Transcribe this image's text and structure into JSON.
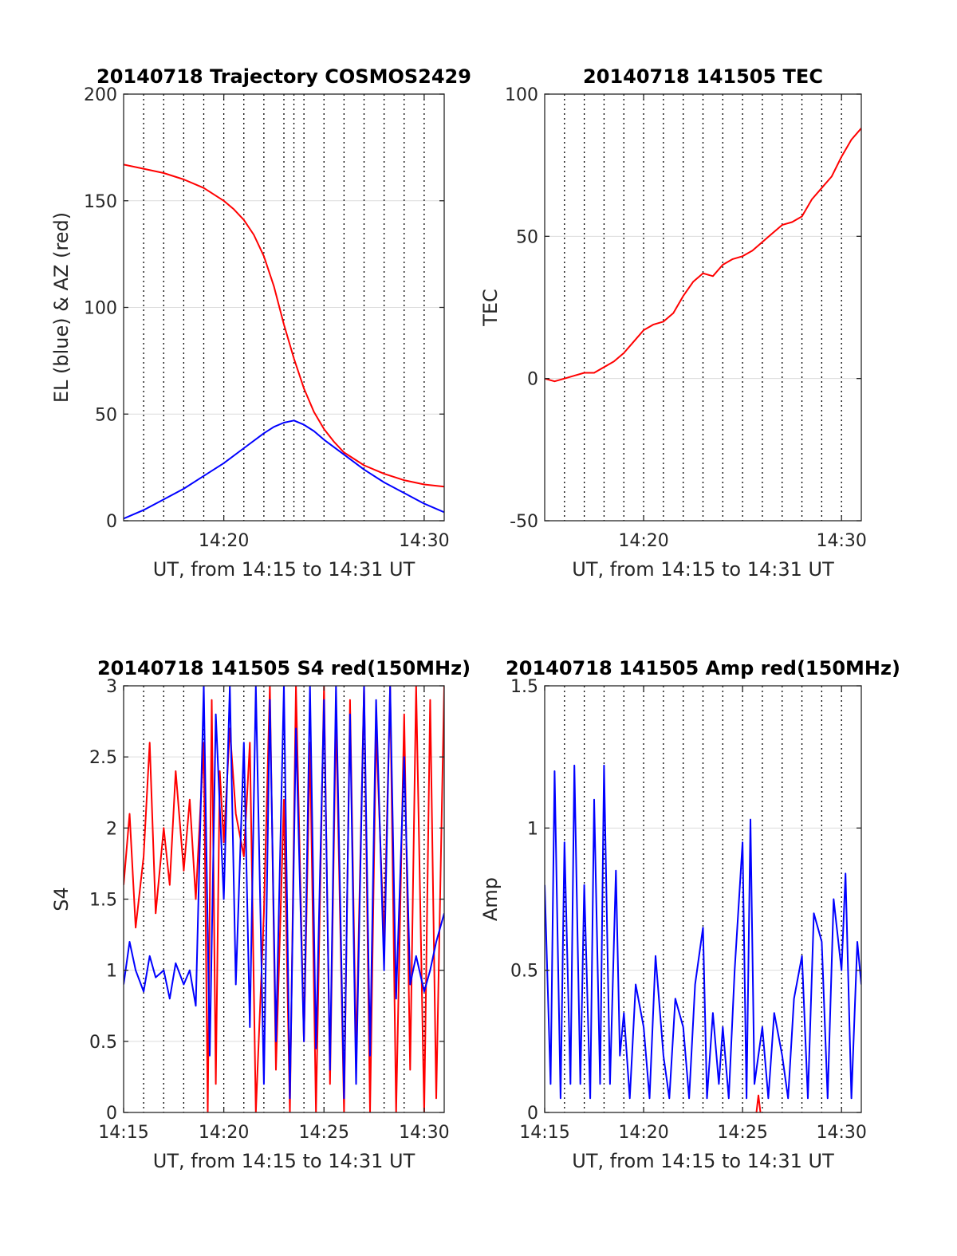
{
  "chart_data": [
    {
      "type": "line",
      "title": "20140718 Trajectory COSMOS2429",
      "xlabel": "UT, from 14:15 to 14:31 UT",
      "ylabel": "EL (blue) & AZ (red)",
      "xlim": [
        15,
        31
      ],
      "ylim": [
        0,
        200
      ],
      "xticks": [
        20,
        30
      ],
      "xticklabels": [
        "14:20",
        "14:30"
      ],
      "yticks": [
        0,
        50,
        100,
        150,
        200
      ],
      "yticklabels": [
        "0",
        "50",
        "100",
        "150",
        "200"
      ],
      "x_unit": "minutes after 14:00 UT",
      "vlines": [
        16,
        17,
        18,
        19,
        20,
        21,
        22,
        23,
        23.5,
        24,
        25,
        26,
        27,
        28,
        29,
        30
      ],
      "grid": "horizontal",
      "series": [
        {
          "color": "#ff0000",
          "x": [
            15,
            16,
            17,
            18,
            19,
            20,
            20.5,
            21,
            21.5,
            22,
            22.5,
            23,
            23.5,
            24,
            24.5,
            25,
            25.5,
            26,
            27,
            28,
            29,
            30,
            31
          ],
          "y": [
            167,
            165,
            163,
            160,
            156,
            150,
            146,
            141,
            134,
            124,
            110,
            92,
            76,
            62,
            51,
            43,
            37,
            32,
            26,
            22,
            19,
            17,
            16
          ]
        },
        {
          "color": "#0000ff",
          "x": [
            15,
            16,
            17,
            18,
            19,
            20,
            21,
            22,
            22.5,
            23,
            23.5,
            24,
            24.5,
            25,
            26,
            27,
            28,
            29,
            30,
            31
          ],
          "y": [
            1,
            5,
            10,
            15,
            21,
            27,
            34,
            41,
            44,
            46,
            47,
            45,
            42,
            38,
            31,
            24,
            18,
            13,
            8,
            4
          ]
        }
      ]
    },
    {
      "type": "line",
      "title": "20140718 141505 TEC",
      "xlabel": "UT, from 14:15 to 14:31 UT",
      "ylabel": "TEC",
      "xlim": [
        15,
        31
      ],
      "ylim": [
        -50,
        100
      ],
      "xticks": [
        20,
        30
      ],
      "xticklabels": [
        "14:20",
        "14:30"
      ],
      "yticks": [
        -50,
        0,
        50,
        100
      ],
      "yticklabels": [
        "-50",
        "0",
        "50",
        "100"
      ],
      "x_unit": "minutes after 14:00 UT",
      "vlines": [
        16,
        17,
        18,
        19,
        20,
        21,
        22,
        23,
        24,
        25,
        26,
        27,
        28,
        29,
        30
      ],
      "grid": "horizontal",
      "series": [
        {
          "color": "#ff0000",
          "x": [
            15,
            15.5,
            16,
            16.5,
            17,
            17.5,
            18,
            18.5,
            19,
            19.5,
            20,
            20.5,
            21,
            21.5,
            22,
            22.5,
            23,
            23.5,
            24,
            24.5,
            25,
            25.5,
            26,
            26.5,
            27,
            27.5,
            28,
            28.5,
            29,
            29.5,
            30,
            30.5,
            31
          ],
          "y": [
            0,
            -1,
            0,
            1,
            2,
            2,
            4,
            6,
            9,
            13,
            17,
            19,
            20,
            23,
            29,
            34,
            37,
            36,
            40,
            42,
            43,
            45,
            48,
            51,
            54,
            55,
            57,
            63,
            67,
            71,
            78,
            84,
            88
          ]
        }
      ]
    },
    {
      "type": "line",
      "title": "20140718 141505 S4 red(150MHz)",
      "xlabel": "UT, from 14:15 to 14:31 UT",
      "ylabel": "S4",
      "xlim": [
        15,
        31
      ],
      "ylim": [
        0,
        3
      ],
      "xticks": [
        15,
        20,
        25,
        30
      ],
      "xticklabels": [
        "14:15",
        "14:20",
        "14:25",
        "14:30"
      ],
      "yticks": [
        0,
        0.5,
        1,
        1.5,
        2,
        2.5,
        3
      ],
      "yticklabels": [
        "0",
        "0.5",
        "1",
        "1.5",
        "2",
        "2.5",
        "3"
      ],
      "x_unit": "minutes after 14:00 UT",
      "vlines": [
        16,
        17,
        18,
        19,
        20,
        21,
        22,
        23,
        24,
        25,
        26,
        27,
        28,
        29,
        30
      ],
      "grid": "horizontal",
      "series": [
        {
          "color": "#ff0000",
          "x": [
            15,
            15.3,
            15.6,
            16,
            16.3,
            16.6,
            17,
            17.3,
            17.6,
            18,
            18.3,
            18.6,
            19,
            19.2,
            19.4,
            19.6,
            19.8,
            20,
            20.3,
            20.6,
            21,
            21.3,
            21.6,
            22,
            22.3,
            22.6,
            23,
            23.3,
            23.6,
            24,
            24.3,
            24.6,
            25,
            25.3,
            25.6,
            26,
            26.3,
            26.6,
            27,
            27.3,
            27.6,
            28,
            28.3,
            28.6,
            29,
            29.3,
            29.6,
            30,
            30.3,
            30.6,
            31
          ],
          "y": [
            1.6,
            2.1,
            1.3,
            1.8,
            2.6,
            1.4,
            2.0,
            1.6,
            2.4,
            1.7,
            2.2,
            1.5,
            2.6,
            0,
            2.9,
            0.2,
            2.4,
            1.9,
            2.7,
            2.1,
            1.8,
            2.6,
            0,
            1.4,
            3.0,
            0.3,
            2.2,
            0,
            3.0,
            0.5,
            2.6,
            0,
            3.0,
            0.2,
            2.8,
            0,
            2.9,
            0.4,
            3.0,
            0,
            2.7,
            1.2,
            3.0,
            0,
            2.8,
            0.3,
            3.0,
            0,
            2.9,
            0.1,
            3.0
          ]
        },
        {
          "color": "#0000ff",
          "x": [
            15,
            15.3,
            15.6,
            16,
            16.3,
            16.6,
            17,
            17.3,
            17.6,
            18,
            18.3,
            18.6,
            19,
            19.3,
            19.6,
            20,
            20.3,
            20.6,
            21,
            21.3,
            21.6,
            22,
            22.3,
            22.6,
            23,
            23.3,
            23.6,
            24,
            24.3,
            24.6,
            25,
            25.3,
            25.6,
            26,
            26.3,
            26.6,
            27,
            27.3,
            27.6,
            28,
            28.3,
            28.6,
            29,
            29.3,
            29.6,
            30,
            30.3,
            30.6,
            31
          ],
          "y": [
            0.9,
            1.2,
            1.0,
            0.85,
            1.1,
            0.95,
            1.0,
            0.8,
            1.05,
            0.9,
            1.0,
            0.75,
            3.0,
            0.4,
            2.8,
            1.5,
            3.0,
            0.9,
            2.6,
            0.6,
            3.0,
            0.2,
            2.9,
            0.5,
            3.0,
            0.1,
            2.7,
            0.5,
            3.0,
            0.45,
            2.9,
            0.3,
            3.0,
            0.1,
            2.8,
            0.2,
            3.0,
            0.4,
            2.9,
            1.0,
            3.0,
            0.8,
            2.5,
            0.9,
            1.1,
            0.85,
            1.0,
            1.2,
            1.4
          ]
        }
      ]
    },
    {
      "type": "line",
      "title": "20140718 141505 Amp red(150MHz)",
      "xlabel": "UT, from 14:15 to 14:31 UT",
      "ylabel": "Amp",
      "xlim": [
        15,
        31
      ],
      "ylim": [
        0,
        1.5
      ],
      "xticks": [
        15,
        20,
        25,
        30
      ],
      "xticklabels": [
        "14:15",
        "14:20",
        "14:25",
        "14:30"
      ],
      "yticks": [
        0,
        0.5,
        1,
        1.5
      ],
      "yticklabels": [
        "0",
        "0.5",
        "1",
        "1.5"
      ],
      "x_unit": "minutes after 14:00 UT",
      "vlines": [
        16,
        17,
        18,
        19,
        20,
        21,
        22,
        23,
        24,
        25,
        26,
        27,
        28,
        29,
        30
      ],
      "grid": "horizontal",
      "series": [
        {
          "color": "#0000ff",
          "x": [
            15,
            15.3,
            15.5,
            15.8,
            16,
            16.3,
            16.5,
            16.8,
            17,
            17.3,
            17.5,
            17.8,
            18,
            18.3,
            18.6,
            18.8,
            19,
            19.3,
            19.6,
            20,
            20.3,
            20.6,
            21,
            21.3,
            21.6,
            22,
            22.3,
            22.6,
            23,
            23.2,
            23.5,
            23.8,
            24,
            24.3,
            24.6,
            25,
            25.2,
            25.4,
            25.6,
            26,
            26.3,
            26.6,
            27,
            27.3,
            27.6,
            28,
            28.3,
            28.6,
            29,
            29.3,
            29.6,
            30,
            30.2,
            30.5,
            30.8,
            31
          ],
          "y": [
            0.8,
            0.1,
            1.2,
            0.05,
            0.95,
            0.1,
            1.22,
            0.1,
            0.8,
            0.05,
            1.1,
            0.1,
            1.22,
            0.1,
            0.85,
            0.2,
            0.35,
            0.05,
            0.45,
            0.3,
            0.05,
            0.55,
            0.2,
            0.05,
            0.4,
            0.3,
            0.05,
            0.45,
            0.65,
            0.05,
            0.35,
            0.1,
            0.3,
            0.05,
            0.5,
            0.95,
            0.05,
            1.03,
            0.1,
            0.3,
            0.05,
            0.35,
            0.2,
            0.05,
            0.4,
            0.55,
            0.05,
            0.7,
            0.6,
            0.05,
            0.75,
            0.5,
            0.84,
            0.05,
            0.6,
            0.45
          ]
        },
        {
          "color": "#ff0000",
          "x": [
            25.7,
            25.8,
            25.9
          ],
          "y": [
            0,
            0.06,
            0
          ]
        }
      ]
    }
  ]
}
